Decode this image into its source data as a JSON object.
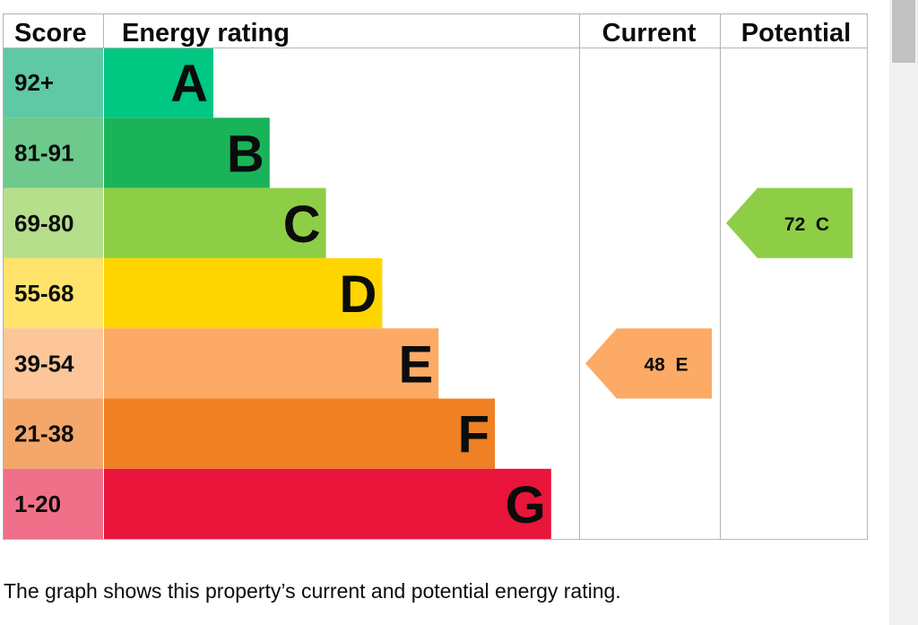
{
  "chart_data": {
    "type": "bar",
    "headers": {
      "score": "Score",
      "rating": "Energy rating",
      "current": "Current",
      "potential": "Potential"
    },
    "bands": [
      {
        "letter": "A",
        "range": "92+",
        "color": "#00c781",
        "score_bg": "#5ec9a4"
      },
      {
        "letter": "B",
        "range": "81-91",
        "color": "#19b459",
        "score_bg": "#6dc98c"
      },
      {
        "letter": "C",
        "range": "69-80",
        "color": "#8dce46",
        "score_bg": "#b5df8b"
      },
      {
        "letter": "D",
        "range": "55-68",
        "color": "#ffd500",
        "score_bg": "#ffe36b"
      },
      {
        "letter": "E",
        "range": "39-54",
        "color": "#fcaa65",
        "score_bg": "#fcc69a"
      },
      {
        "letter": "F",
        "range": "21-38",
        "color": "#ef8023",
        "score_bg": "#f4a76a"
      },
      {
        "letter": "G",
        "range": "1-20",
        "color": "#e9153b",
        "score_bg": "#f07089"
      }
    ],
    "current": {
      "score": 48,
      "band": "E",
      "label": "48  E",
      "color": "#fcaa65"
    },
    "potential": {
      "score": 72,
      "band": "C",
      "label": "72  C",
      "color": "#8dce46"
    }
  },
  "caption": "The graph shows this property’s current and potential energy rating."
}
